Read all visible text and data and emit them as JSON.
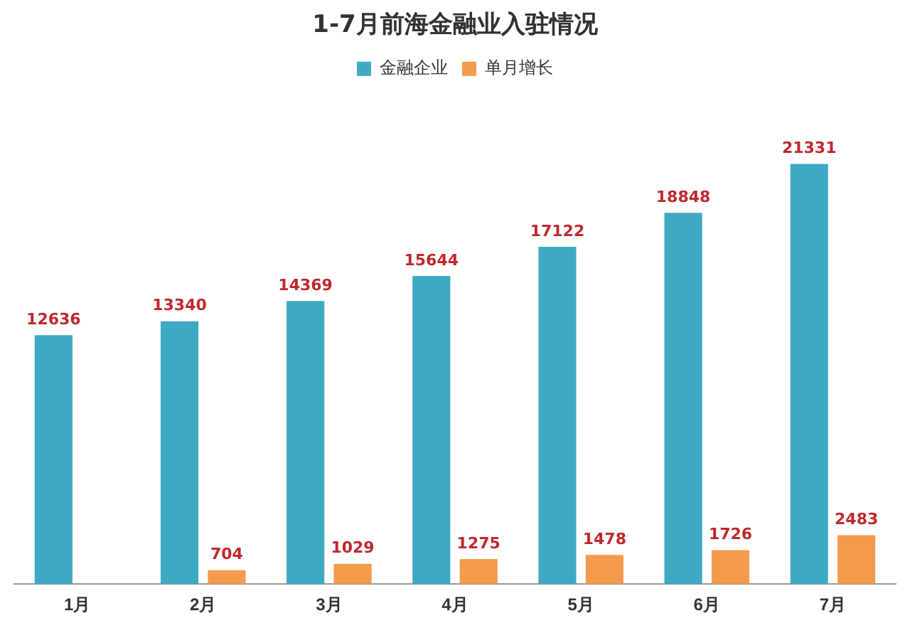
{
  "chart_data": {
    "type": "bar",
    "title": "1-7月前海金融业入驻情况",
    "categories": [
      "1月",
      "2月",
      "3月",
      "4月",
      "5月",
      "6月",
      "7月"
    ],
    "series": [
      {
        "name": "金融企业",
        "color": "#3fa9c4",
        "values": [
          12636,
          13340,
          14369,
          15644,
          17122,
          18848,
          21331
        ]
      },
      {
        "name": "单月增长",
        "color": "#f39a4c",
        "values": [
          null,
          704,
          1029,
          1275,
          1478,
          1726,
          2483
        ]
      }
    ],
    "data_labels": true,
    "legend": "top",
    "grid": false
  }
}
